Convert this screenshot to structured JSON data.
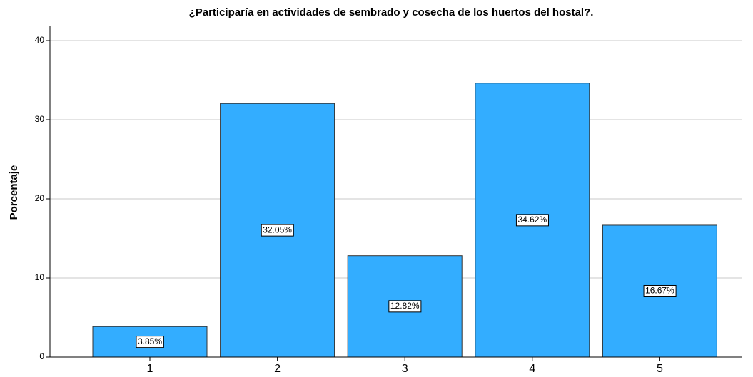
{
  "chart_data": {
    "type": "bar",
    "title": "¿Participaría en actividades de sembrado y cosecha de los huertos del hostal?.",
    "ylabel": "Porcentaje",
    "categories": [
      "1",
      "2",
      "3",
      "4",
      "5"
    ],
    "values": [
      3.85,
      32.05,
      12.82,
      34.62,
      16.67
    ],
    "value_labels": [
      "3.85%",
      "32.05%",
      "12.82%",
      "34.62%",
      "16.67%"
    ],
    "color": "#33adff",
    "ylim": [
      0,
      40
    ],
    "yticks": [
      0,
      10,
      20,
      30,
      40
    ],
    "grid": true
  }
}
